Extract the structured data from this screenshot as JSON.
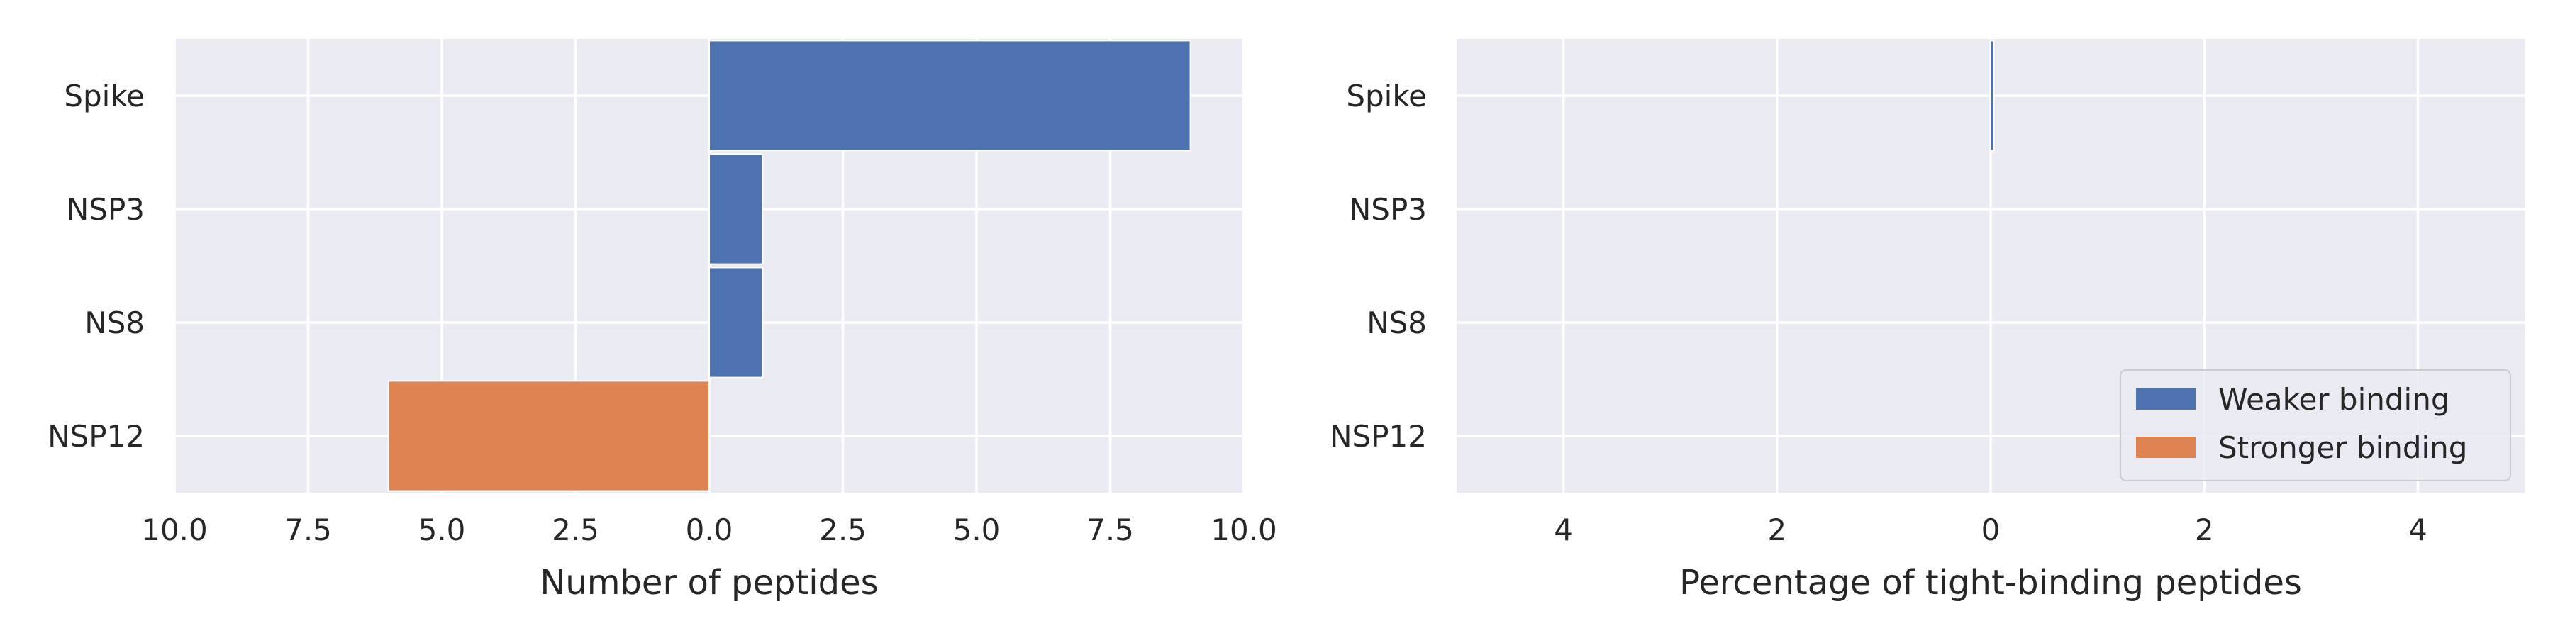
{
  "chart_data": [
    {
      "type": "bar",
      "orientation": "horizontal",
      "categories": [
        "Spike",
        "NSP3",
        "NS8",
        "NSP12"
      ],
      "series": [
        {
          "name": "Weaker binding",
          "color": "#4c72b0",
          "values": [
            9,
            1,
            1,
            0
          ]
        },
        {
          "name": "Stronger binding",
          "color": "#dd8452",
          "values": [
            0,
            0,
            0,
            -6
          ]
        }
      ],
      "xlabel": "Number of peptides",
      "ylabel": "",
      "xlim": [
        -10,
        10
      ],
      "x_ticks": [
        -10,
        -7.5,
        -5,
        -2.5,
        0,
        2.5,
        5,
        7.5,
        10
      ],
      "x_tick_labels": [
        "10.0",
        "7.5",
        "5.0",
        "2.5",
        "0.0",
        "2.5",
        "5.0",
        "7.5",
        "10.0"
      ],
      "grid": true,
      "background": "#eaeaf2"
    },
    {
      "type": "bar",
      "orientation": "horizontal",
      "categories": [
        "Spike",
        "NSP3",
        "NS8",
        "NSP12"
      ],
      "series": [
        {
          "name": "Weaker binding",
          "color": "#4c72b0",
          "values": [
            0.03,
            0,
            0,
            0
          ]
        },
        {
          "name": "Stronger binding",
          "color": "#dd8452",
          "values": [
            0,
            0,
            0,
            0
          ]
        }
      ],
      "xlabel": "Percentage of tight-binding peptides",
      "ylabel": "",
      "xlim": [
        -5,
        5
      ],
      "x_ticks": [
        -4,
        -2,
        0,
        2,
        4
      ],
      "x_tick_labels": [
        "4",
        "2",
        "0",
        "2",
        "4"
      ],
      "grid": true,
      "background": "#eaeaf2",
      "legend": {
        "placement": "lower-right",
        "entries": [
          "Weaker binding",
          "Stronger binding"
        ]
      }
    }
  ]
}
